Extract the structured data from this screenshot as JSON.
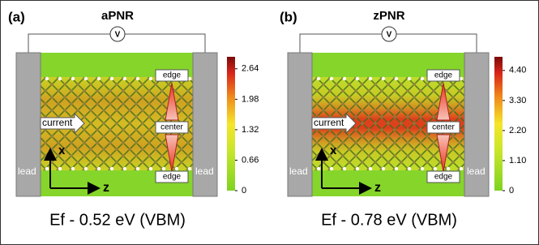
{
  "panels": [
    {
      "label": "(a)",
      "title": "aPNR",
      "voltmeter": "V",
      "lead_left": "lead",
      "lead_right": "lead",
      "current": "current",
      "edge_top": "edge",
      "center": "center",
      "edge_bottom": "edge",
      "axis_x": "x",
      "axis_z": "z",
      "colorbar": {
        "clim": [
          0,
          2.9
        ],
        "ticks": [
          2.64,
          1.98,
          1.32,
          0.66,
          0
        ]
      },
      "caption": "Ef - 0.52 eV (VBM)"
    },
    {
      "label": "(b)",
      "title": "zPNR",
      "voltmeter": "V",
      "lead_left": "lead",
      "lead_right": "lead",
      "current": "current",
      "edge_top": "edge",
      "center": "center",
      "edge_bottom": "edge",
      "axis_x": "x",
      "axis_z": "z",
      "colorbar": {
        "clim": [
          0,
          4.9
        ],
        "ticks": [
          {
            "value": 4.4,
            "label": "4.40"
          },
          {
            "value": 3.3,
            "label": "3.30"
          },
          {
            "value": 2.2,
            "label": "2.20"
          },
          {
            "value": 1.1,
            "label": "1.10"
          },
          0
        ]
      },
      "caption": "Ef - 0.78 eV (VBM)"
    }
  ]
}
